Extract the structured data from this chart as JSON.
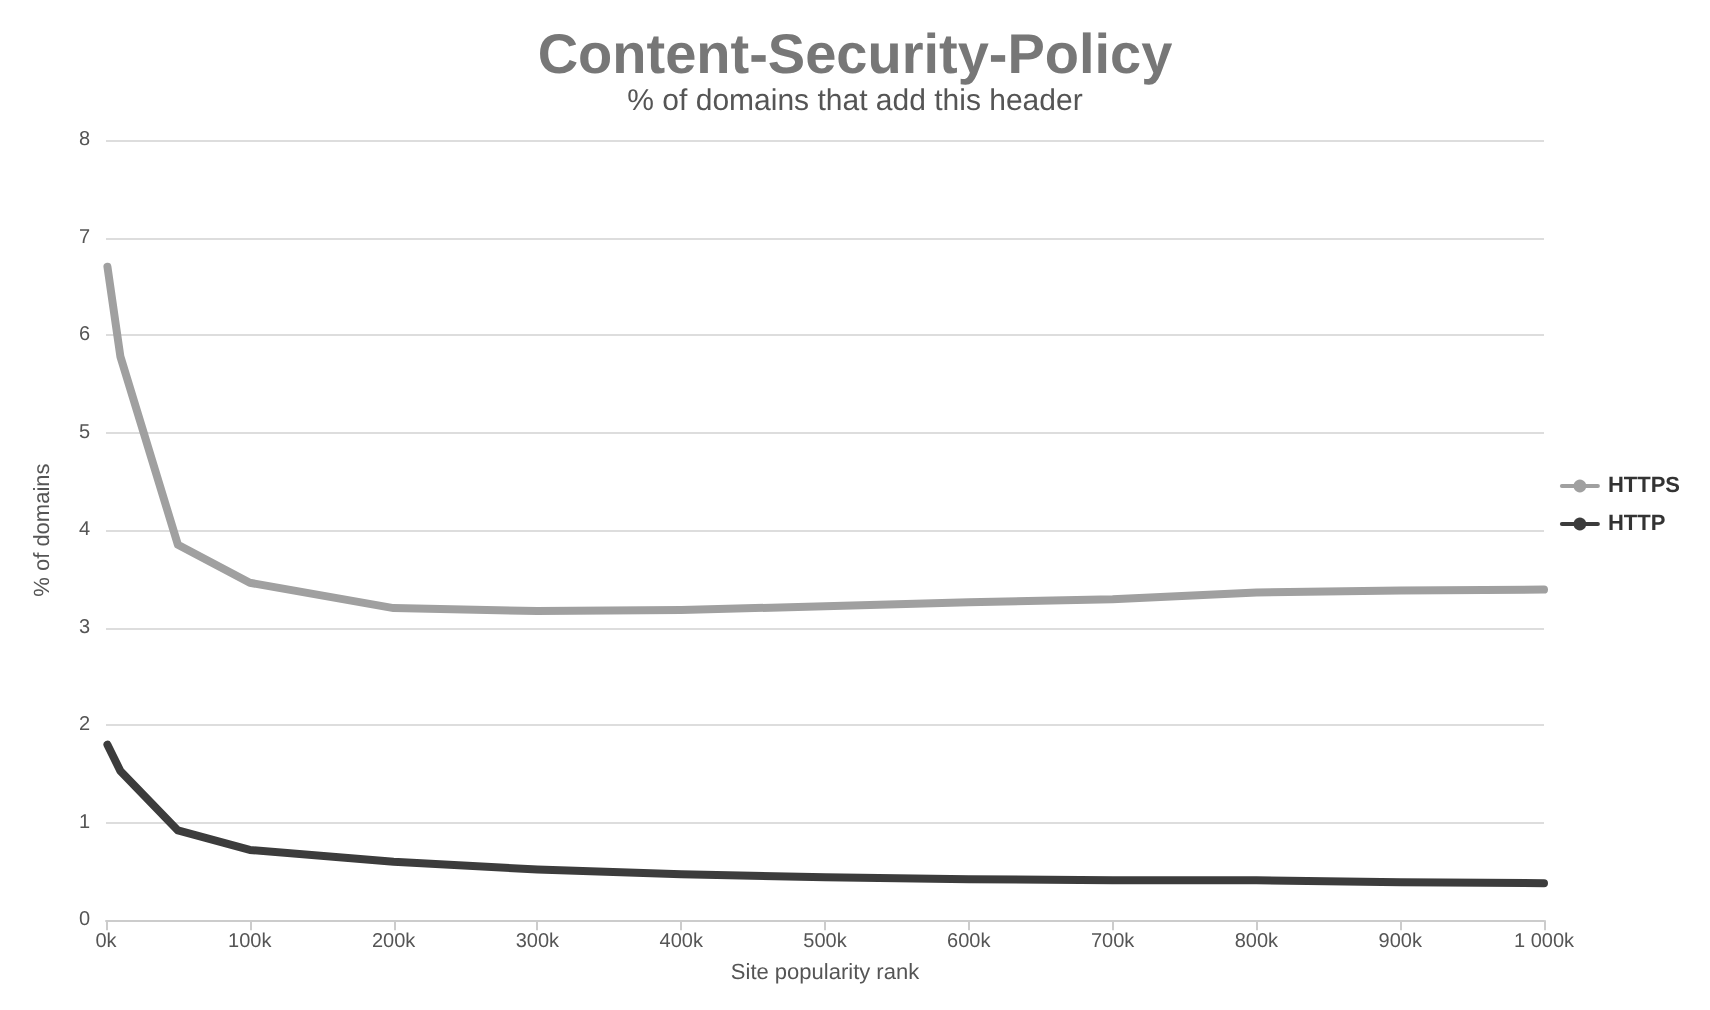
{
  "chart_data": {
    "type": "line",
    "title": "Content-Security-Policy",
    "subtitle": "% of domains that add this header",
    "xlabel": "Site popularity rank",
    "ylabel": "% of domains",
    "x": [
      1,
      10,
      50,
      100,
      200,
      300,
      400,
      500,
      600,
      700,
      800,
      900,
      1000
    ],
    "series": [
      {
        "name": "HTTPS",
        "color": "#a0a0a0",
        "values": [
          6.7,
          5.78,
          3.85,
          3.46,
          3.2,
          3.17,
          3.18,
          3.22,
          3.26,
          3.29,
          3.36,
          3.38,
          3.39
        ]
      },
      {
        "name": "HTTP",
        "color": "#3c3c3c",
        "values": [
          1.8,
          1.53,
          0.92,
          0.72,
          0.6,
          0.52,
          0.47,
          0.44,
          0.42,
          0.41,
          0.41,
          0.39,
          0.38
        ]
      }
    ],
    "xlim": [
      0,
      1000
    ],
    "xticks": [
      {
        "value": 0,
        "label": "0k"
      },
      {
        "value": 100,
        "label": "100k"
      },
      {
        "value": 200,
        "label": "200k"
      },
      {
        "value": 300,
        "label": "300k"
      },
      {
        "value": 400,
        "label": "400k"
      },
      {
        "value": 500,
        "label": "500k"
      },
      {
        "value": 600,
        "label": "600k"
      },
      {
        "value": 700,
        "label": "700k"
      },
      {
        "value": 800,
        "label": "800k"
      },
      {
        "value": 900,
        "label": "900k"
      },
      {
        "value": 1000,
        "label": "1 000k"
      }
    ],
    "ylim": [
      0,
      8
    ],
    "yticks": [
      0,
      1,
      2,
      3,
      4,
      5,
      6,
      7,
      8
    ],
    "grid": "y",
    "legend": "right",
    "marker": "none",
    "line_style": "solid"
  }
}
